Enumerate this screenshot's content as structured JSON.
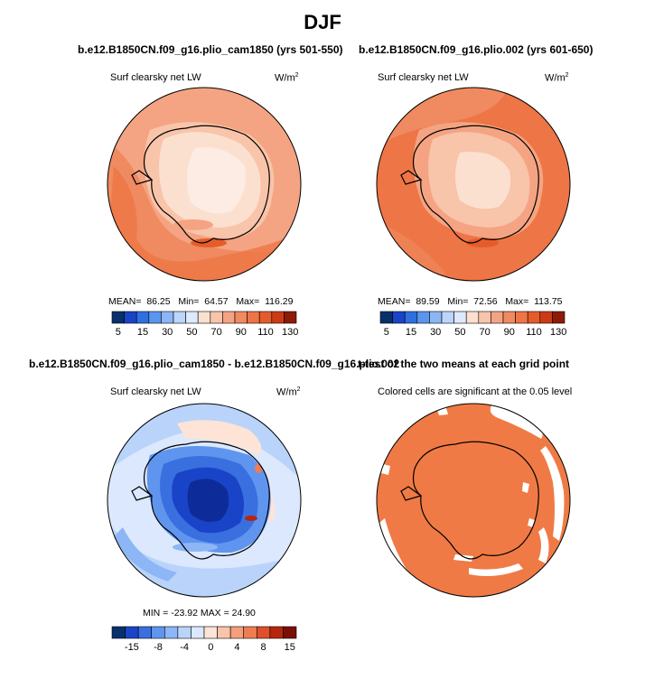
{
  "title": "DJF",
  "panels": [
    {
      "title": "b.e12.B1850CN.f09_g16.plio_cam1850 (yrs 501-550)",
      "variable": "Surf clearsky net LW",
      "units": "W/m",
      "units_exp": "2",
      "mean_label": "MEAN=",
      "mean": "86.25",
      "min_label": "Min=",
      "min": "64.57",
      "max_label": "Max=",
      "max": "116.29",
      "colorbar_labels": [
        "5",
        "15",
        "30",
        "50",
        "70",
        "90",
        "110",
        "130"
      ]
    },
    {
      "title": "b.e12.B1850CN.f09_g16.plio.002 (yrs 601-650)",
      "variable": "Surf clearsky net LW",
      "units": "W/m",
      "units_exp": "2",
      "mean_label": "MEAN=",
      "mean": "89.59",
      "min_label": "Min=",
      "min": "72.56",
      "max_label": "Max=",
      "max": "113.75",
      "colorbar_labels": [
        "5",
        "15",
        "30",
        "50",
        "70",
        "90",
        "110",
        "130"
      ]
    },
    {
      "title": "b.e12.B1850CN.f09_g16.plio_cam1850 - b.e12.B1850CN.f09_g16.plio.002",
      "variable": "Surf clearsky net LW",
      "units": "W/m",
      "units_exp": "2",
      "minmax": "MIN = -23.92  MAX =  24.90",
      "colorbar_labels": [
        "-15",
        "-8",
        "-4",
        "0",
        "4",
        "8",
        "15"
      ]
    },
    {
      "title": "t-test of the two means at each grid point",
      "subtitle": "Colored cells are significant at the 0.05 level"
    }
  ],
  "colors": {
    "abs_scale": [
      "#08306b",
      "#1a44c8",
      "#2f6fe0",
      "#5a95ee",
      "#8cb6f5",
      "#bcd5fb",
      "#dde9fd",
      "#fbe0d0",
      "#f8c4aa",
      "#f4a482",
      "#f08a60",
      "#ee7545",
      "#e55c2b",
      "#cc3b16",
      "#8e1a08"
    ],
    "diff_scale": [
      "#08306b",
      "#1a44c8",
      "#3a6fe0",
      "#5f95ee",
      "#8cb6f5",
      "#b9d3fb",
      "#dbe8fd",
      "#fde4d6",
      "#f8c4aa",
      "#f4a07c",
      "#ef7d52",
      "#e0502a",
      "#b8250d",
      "#7a1004"
    ],
    "ttest_fill": "#f07a45"
  }
}
